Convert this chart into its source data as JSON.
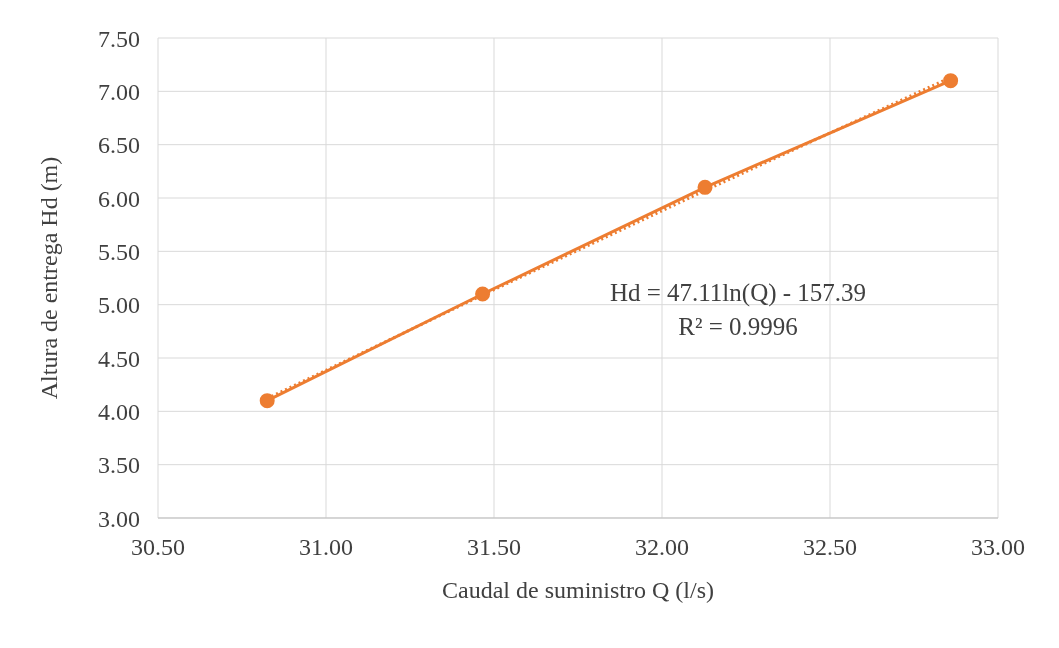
{
  "chart_data": {
    "type": "line",
    "xlabel": "Caudal de suministro Q (l/s)",
    "ylabel": "Altura de entrega Hd (m)",
    "series": [
      {
        "color": "#ed7d31",
        "marker": "circle",
        "line_style": "solid",
        "x": [
          30.825,
          31.466,
          32.128,
          32.859
        ],
        "values": [
          4.1,
          5.1,
          6.1,
          7.1
        ]
      },
      {
        "color": "#ed7d31",
        "marker": "none",
        "line_style": "dotted",
        "x": [
          30.825,
          31.466,
          32.128,
          32.859
        ],
        "values": [
          4.12,
          5.09,
          6.07,
          7.13
        ]
      }
    ],
    "annotations": [
      "Hd = 47.11ln(Q) - 157.39",
      "R² = 0.9996"
    ],
    "xlim": [
      30.5,
      33
    ],
    "xticks": [
      {
        "value": 30.5,
        "label": "30.50"
      },
      {
        "value": 31,
        "label": "31.00"
      },
      {
        "value": 31.5,
        "label": "31.50"
      },
      {
        "value": 32,
        "label": "32.00"
      },
      {
        "value": 32.5,
        "label": "32.50"
      },
      {
        "value": 33,
        "label": "33.00"
      }
    ],
    "ylim": [
      3,
      7.5
    ],
    "yticks": [
      {
        "value": 3,
        "label": "3.00"
      },
      {
        "value": 3.5,
        "label": "3.50"
      },
      {
        "value": 4,
        "label": "4.00"
      },
      {
        "value": 4.5,
        "label": "4.50"
      },
      {
        "value": 5,
        "label": "5.00"
      },
      {
        "value": 5.5,
        "label": "5.50"
      },
      {
        "value": 6,
        "label": "6.00"
      },
      {
        "value": 6.5,
        "label": "6.50"
      },
      {
        "value": 7,
        "label": "7.00"
      },
      {
        "value": 7.5,
        "label": "7.50"
      }
    ],
    "grid": true
  }
}
